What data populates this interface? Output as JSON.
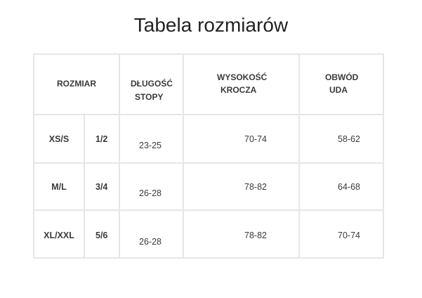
{
  "title": "Tabela rozmiarów",
  "headers": {
    "size": "ROZMIAR",
    "foot_line1": "DŁUGOŚĆ",
    "foot_line2": "STOPY",
    "inseam_line1": "WYSOKOŚĆ",
    "inseam_line2": "KROCZA",
    "thigh_line1": "OBWÓD",
    "thigh_line2": "UDA"
  },
  "rows": [
    {
      "size": "XS/S",
      "number": "1/2",
      "foot": "23-25",
      "inseam": "70-74",
      "thigh": "58-62"
    },
    {
      "size": "M/L",
      "number": "3/4",
      "foot": "26-28",
      "inseam": "78-82",
      "thigh": "64-68"
    },
    {
      "size": "XL/XXL",
      "number": "5/6",
      "foot": "26-28",
      "inseam": "78-82",
      "thigh": "70-74"
    }
  ]
}
